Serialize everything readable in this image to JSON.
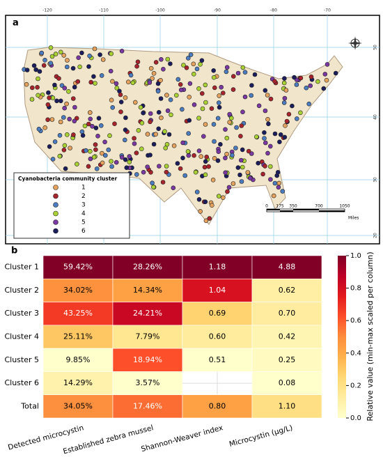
{
  "map": {
    "panel_label": "a",
    "lon_labels": [
      "-120",
      "-110",
      "-100",
      "-90",
      "-80",
      "-70"
    ],
    "lat_labels": [
      "50",
      "40",
      "30",
      "20"
    ],
    "legend_title": "Cyanobacteria community cluster",
    "legend": [
      {
        "name": "1",
        "color": "#e4a25e"
      },
      {
        "name": "2",
        "color": "#a8242c"
      },
      {
        "name": "3",
        "color": "#4b7cc0"
      },
      {
        "name": "4",
        "color": "#a9d134"
      },
      {
        "name": "5",
        "color": "#7a38a3"
      },
      {
        "name": "6",
        "color": "#1b1d5c"
      }
    ],
    "scale_labels": [
      "0",
      "175",
      "350",
      "700",
      "1050"
    ],
    "scale_unit": "Miles"
  },
  "chart_data": {
    "type": "heatmap",
    "panel_label": "b",
    "rows": [
      "Cluster 1",
      "Cluster 2",
      "Cluster 3",
      "Cluster 4",
      "Cluster 5",
      "Cluster 6",
      "Total"
    ],
    "columns": [
      "Detected microcystin",
      "Established zebra mussel",
      "Shannon-Weaver index",
      "Microcystin (μg/L)"
    ],
    "values": [
      [
        59.42,
        28.26,
        1.18,
        4.88
      ],
      [
        34.02,
        14.34,
        1.04,
        0.62
      ],
      [
        43.25,
        24.21,
        0.69,
        0.7
      ],
      [
        25.11,
        7.79,
        0.6,
        0.42
      ],
      [
        9.85,
        18.94,
        0.51,
        0.25
      ],
      [
        14.29,
        3.57,
        null,
        0.08
      ],
      [
        34.05,
        17.46,
        0.8,
        1.1
      ]
    ],
    "value_labels": [
      [
        "59.42%",
        "28.26%",
        "1.18",
        "4.88"
      ],
      [
        "34.02%",
        "14.34%",
        "1.04",
        "0.62"
      ],
      [
        "43.25%",
        "24.21%",
        "0.69",
        "0.70"
      ],
      [
        "25.11%",
        "7.79%",
        "0.60",
        "0.42"
      ],
      [
        "9.85%",
        "18.94%",
        "0.51",
        "0.25"
      ],
      [
        "14.29%",
        "3.57%",
        null,
        "0.08"
      ],
      [
        "34.05%",
        "17.46%",
        "0.80",
        "1.10"
      ]
    ],
    "colorbar_label": "Relative value (min-max scaled per column)",
    "clim": [
      0,
      1
    ],
    "cticks": [
      {
        "value": 0,
        "label": "0.0"
      },
      0.2,
      0.4,
      0.6,
      0.8,
      {
        "value": 1,
        "label": "1.0"
      }
    ],
    "colormap": "YlOrRd"
  }
}
